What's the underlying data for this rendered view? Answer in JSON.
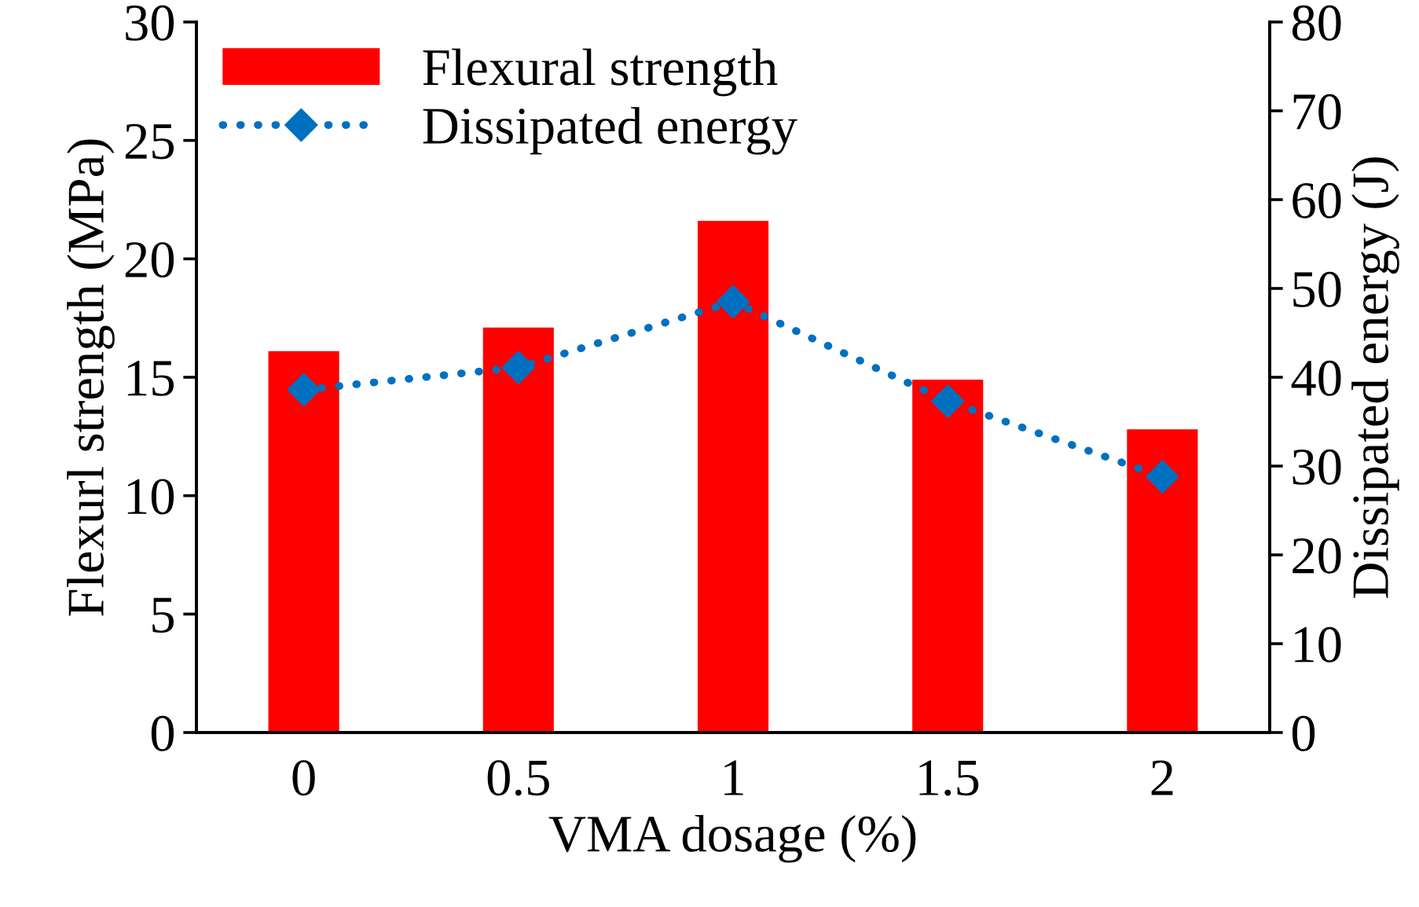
{
  "chart_data": {
    "type": "bar",
    "xlabel": "VMA dosage (%)",
    "ylabel": "Flexurl strength (MPa)",
    "y2label": "Dissipated energy (J)",
    "categories": [
      "0",
      "0.5",
      "1",
      "1.5",
      "2"
    ],
    "series": [
      {
        "name": "Flexural strength",
        "color": "#ff0000",
        "values": [
          16.1,
          17.1,
          21.6,
          14.9,
          12.8
        ]
      },
      {
        "name": "Dissipated energy",
        "type": "line",
        "axis": "y2",
        "color": "#0070c0",
        "marker": "diamond",
        "line_style": "dotted",
        "values": [
          38.6,
          41.1,
          48.5,
          37.3,
          28.8
        ]
      }
    ],
    "ylim": [
      0,
      30
    ],
    "yticks": [
      0,
      5,
      10,
      15,
      20,
      25,
      30
    ],
    "y2lim": [
      0,
      80
    ],
    "y2ticks": [
      0,
      10,
      20,
      30,
      40,
      50,
      60,
      70,
      80
    ],
    "legend": "top left",
    "grid": false
  }
}
